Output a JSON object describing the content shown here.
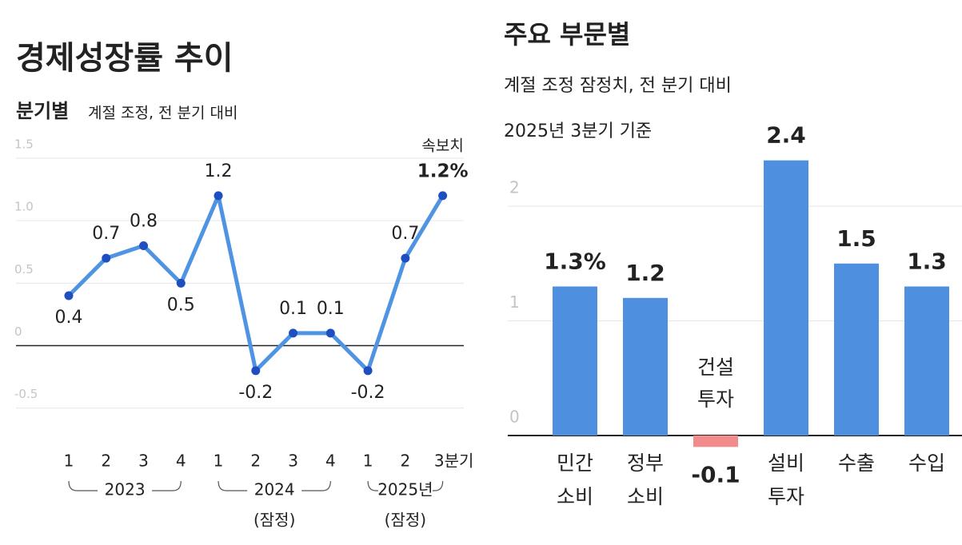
{
  "chart_data": [
    {
      "type": "line",
      "title": "경제성장률 추이",
      "subtitle": "분기별",
      "subtitle_note": "계절 조정, 전 분기 대비",
      "annotation": "속보치",
      "categories": [
        "1",
        "2",
        "3",
        "4",
        "1",
        "2",
        "3",
        "4",
        "1",
        "2",
        "3분기"
      ],
      "values": [
        0.4,
        0.7,
        0.8,
        0.5,
        1.2,
        -0.2,
        0.1,
        0.1,
        -0.2,
        0.7,
        1.2
      ],
      "value_labels": [
        "0.4",
        "0.7",
        "0.8",
        "0.5",
        "1.2",
        "-0.2",
        "0.1",
        "0.1",
        "-0.2",
        "0.7",
        "1.2%"
      ],
      "color": "#4f93e3",
      "marker_color": "#1e4fc0",
      "groups": [
        {
          "label": [
            "2023"
          ]
        },
        {
          "label": [
            "2024",
            "(잠정)"
          ]
        },
        {
          "label": [
            "2025년",
            "(잠정)"
          ]
        }
      ],
      "ylim": [
        -0.7,
        1.5
      ],
      "yticks": [
        -0.5,
        0,
        0.5,
        {
          "value": 1,
          "label": "1.0"
        },
        1.5
      ],
      "grid": true
    },
    {
      "type": "bar",
      "title": "주요 부문별",
      "subtitle": "계절 조정 잠정치, 전 분기 대비",
      "subtitle_2": "2025년 3분기 기준",
      "categories": [
        [
          "민간",
          "소비"
        ],
        [
          "정부",
          "소비"
        ],
        [
          "건설",
          "투자"
        ],
        [
          "설비",
          "투자"
        ],
        [
          "수출"
        ],
        [
          "수입"
        ]
      ],
      "values": [
        1.3,
        1.2,
        -0.1,
        2.4,
        1.5,
        1.3
      ],
      "value_labels": [
        "1.3%",
        "1.2",
        "-0.1",
        "2.4",
        "1.5",
        "1.3"
      ],
      "color": "#4f8fe0",
      "negative_color": "#f28c8c",
      "ylim": [
        -0.3,
        2.6
      ],
      "yticks": [
        0,
        1,
        2
      ],
      "grid": true
    }
  ]
}
